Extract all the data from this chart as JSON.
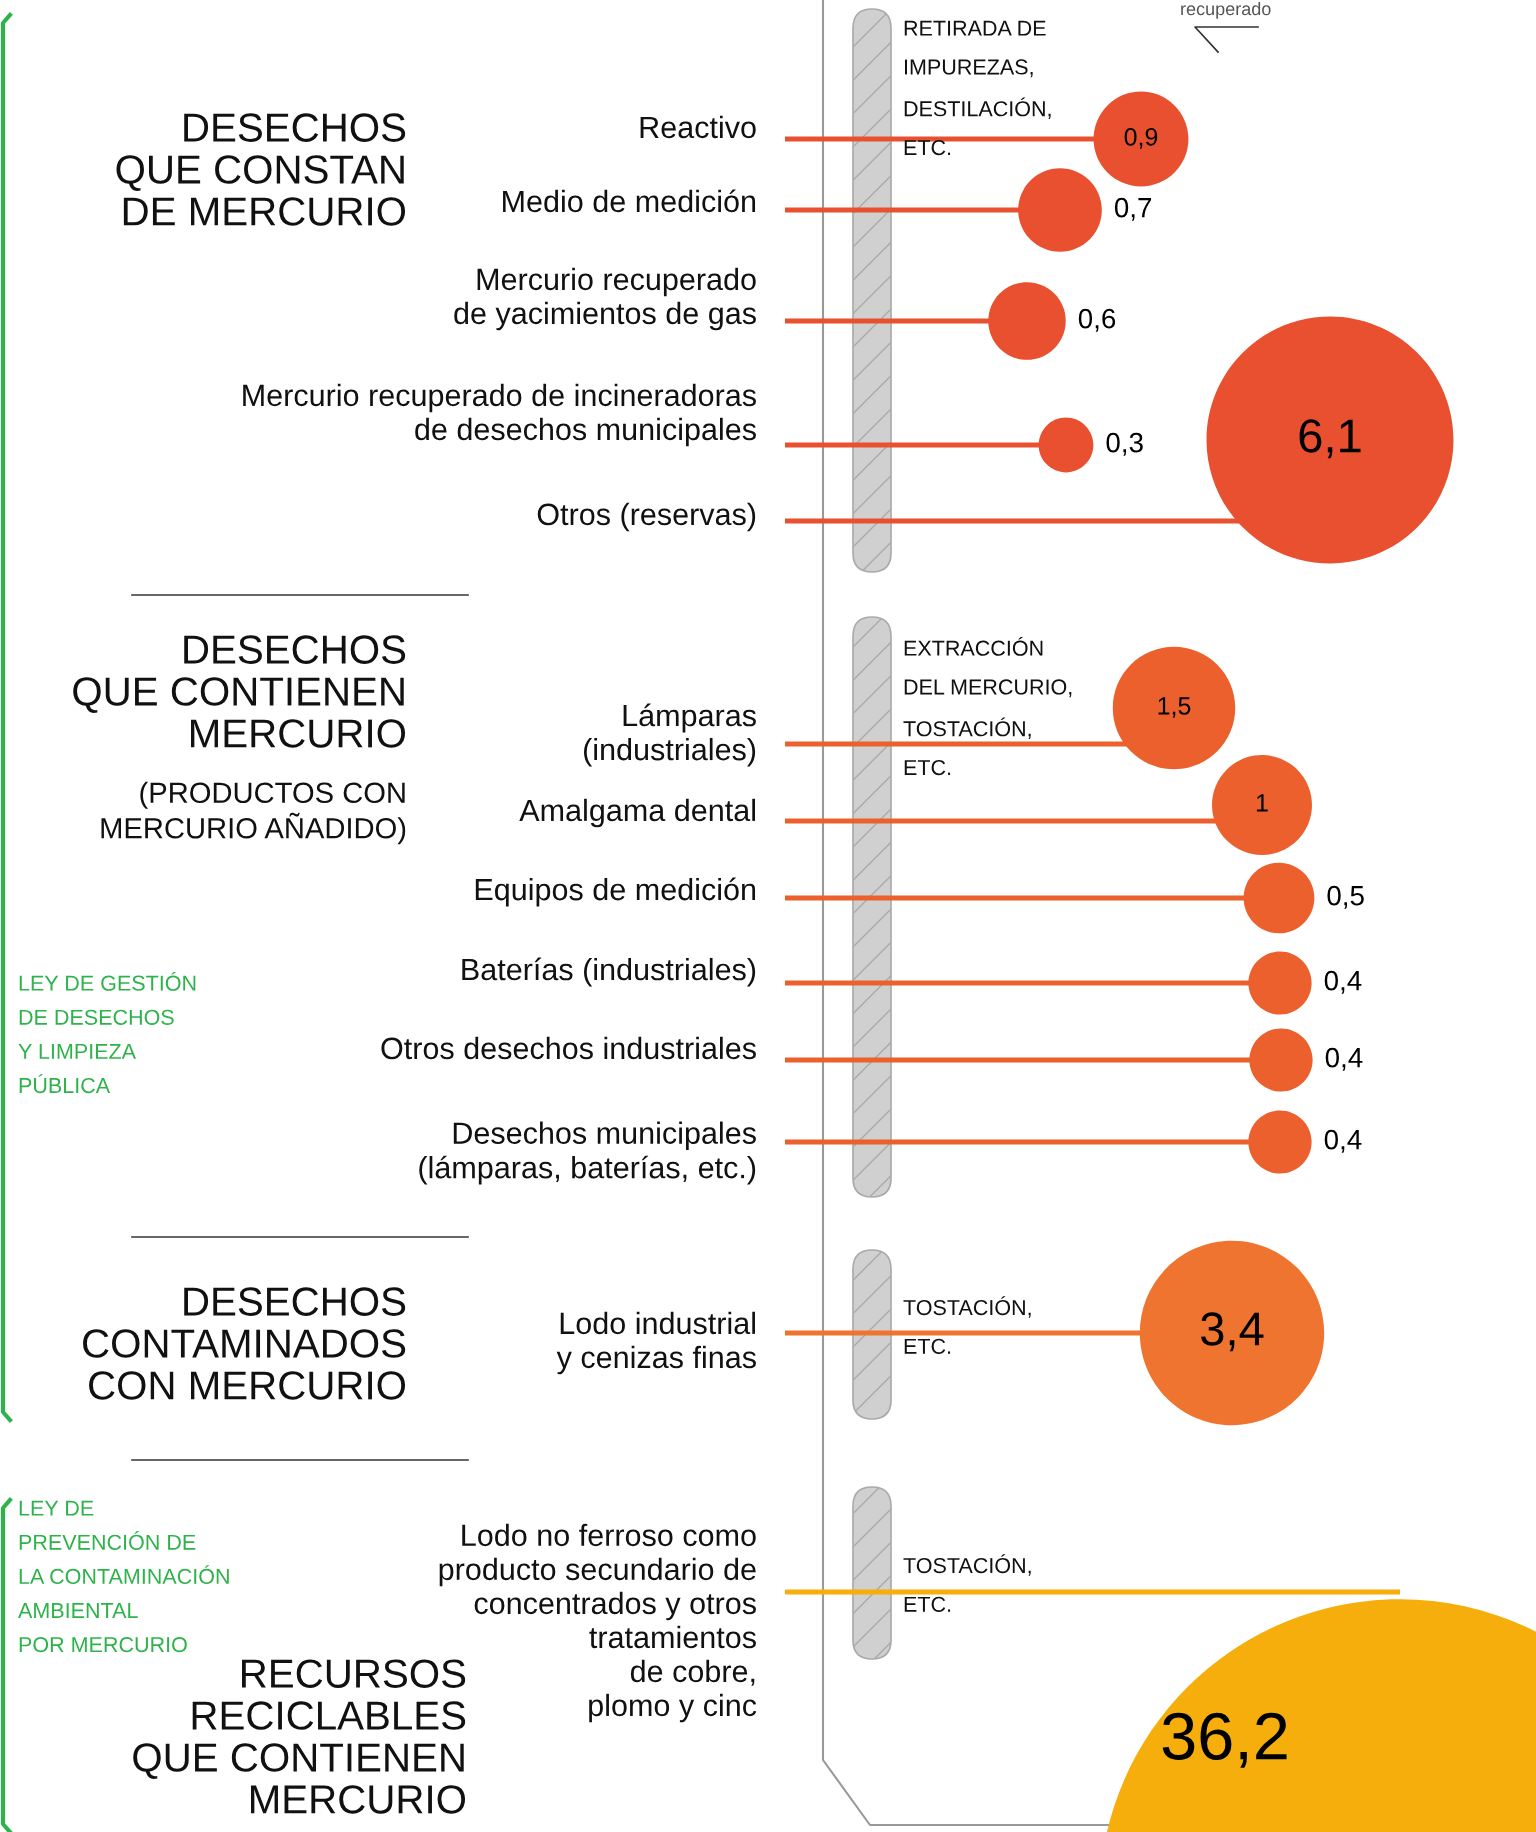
{
  "chart_data": {
    "type": "other",
    "categories": [
      "Reactivo",
      "Medio de medición",
      "Mercurio recuperado\nde yacimientos de gas",
      "Mercurio recuperado de incineradoras\nde desechos municipales",
      "Otros (reservas)",
      "Lámparas\n(industriales)",
      "Amalgama dental",
      "Equipos de medición",
      "Baterías (industriales)",
      "Otros desechos industriales",
      "Desechos municipales\n(lámparas, baterías, etc.)",
      "Lodo industrial\ny cenizas finas",
      "Lodo no ferroso como\nproducto secundario de\nconcentrados y otros\ntratamientos\nde cobre,\nplomo y cinc"
    ],
    "values": [
      0.9,
      0.7,
      0.6,
      0.3,
      6.1,
      1.5,
      1,
      0.5,
      0.4,
      0.4,
      0.4,
      3.4,
      36.2
    ],
    "value_labels": [
      "0,9",
      "0,7",
      "0,6",
      "0,3",
      "6,1",
      "1,5",
      "1",
      "0,5",
      "0,4",
      "0,4",
      "0,4",
      "3,4",
      "36,2"
    ],
    "colors": [
      "#e8502f",
      "#e8502f",
      "#e8502f",
      "#e8502f",
      "#e8502f",
      "#ec602d",
      "#ec602d",
      "#ec602d",
      "#ec602d",
      "#ec602d",
      "#ec602d",
      "#ee7430",
      "#f5ae0b"
    ],
    "annotations": [
      "DESECHOS\nQUE CONSTAN\nDE MERCURIO",
      "DESECHOS\nQUE CONTIENEN\nMERCURIO",
      "(PRODUCTOS CON\nMERCURIO AÑADIDO)",
      "DESECHOS\nCONTAMINADOS\nCON MERCURIO",
      "RECURSOS\nRECICLABLES\nQUE CONTIENEN\nMERCURIO",
      "RETIRADA DE\nIMPUREZAS,\nDESTILACIÓN,\nETC.",
      "EXTRACCIÓN\nDEL MERCURIO,\nTOSTACIÓN,\nETC.",
      "TOSTACIÓN,\nETC.",
      "TOSTACIÓN,\nETC.",
      "LEY DE GESTIÓN\nDE DESECHOS\nY LIMPIEZA\nPÚBLICA",
      "LEY DE\nPREVENCIÓN DE\nLA CONTAMINACIÓN\nAMBIENTAL\nPOR MERCURIO",
      "recuperado"
    ]
  }
}
